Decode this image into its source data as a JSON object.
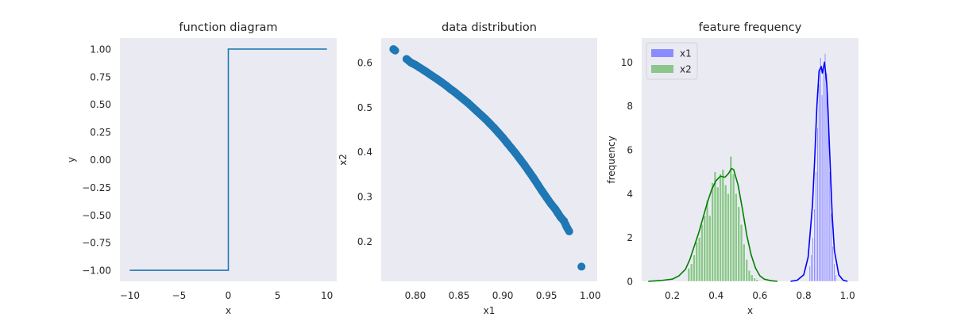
{
  "chart_data": [
    {
      "type": "line",
      "title": "function diagram",
      "xlabel": "x",
      "ylabel": "y",
      "xlim": [
        -11,
        11
      ],
      "ylim": [
        -1.1,
        1.1
      ],
      "xticks": [
        -10,
        -5,
        0,
        5,
        10
      ],
      "xtick_labels": [
        "−10",
        "−5",
        "0",
        "5",
        "10"
      ],
      "yticks": [
        -1.0,
        -0.75,
        -0.5,
        -0.25,
        0.0,
        0.25,
        0.5,
        0.75,
        1.0
      ],
      "ytick_labels": [
        "−1.00",
        "−0.75",
        "−0.50",
        "−0.25",
        "0.00",
        "0.25",
        "0.50",
        "0.75",
        "1.00"
      ],
      "series": [
        {
          "color": "#1f77b4",
          "x": [
            -10,
            0,
            0,
            10
          ],
          "y": [
            -1,
            -1,
            1,
            1
          ]
        }
      ],
      "grid": false
    },
    {
      "type": "scatter",
      "title": "data distribution",
      "xlabel": "x1",
      "ylabel": "x2",
      "xlim": [
        0.761,
        1.008
      ],
      "ylim": [
        0.11,
        0.655
      ],
      "xticks": [
        0.8,
        0.85,
        0.9,
        0.95,
        1.0
      ],
      "xtick_labels": [
        "0.80",
        "0.85",
        "0.90",
        "0.95",
        "1.00"
      ],
      "yticks": [
        0.2,
        0.3,
        0.4,
        0.5,
        0.6
      ],
      "ytick_labels": [
        "0.2",
        "0.3",
        "0.4",
        "0.5",
        "0.6"
      ],
      "color": "#1f77b4",
      "x": [
        0.775,
        0.777,
        0.79,
        0.795,
        0.8,
        0.812,
        0.818,
        0.825,
        0.83,
        0.835,
        0.84,
        0.845,
        0.85,
        0.855,
        0.86,
        0.865,
        0.87,
        0.875,
        0.88,
        0.885,
        0.89,
        0.895,
        0.9,
        0.905,
        0.91,
        0.915,
        0.92,
        0.925,
        0.93,
        0.935,
        0.94,
        0.945,
        0.95,
        0.955,
        0.96,
        0.963,
        0.966,
        0.97,
        0.973,
        0.976,
        0.99
      ],
      "y": [
        0.63,
        0.627,
        0.608,
        0.6,
        0.595,
        0.58,
        0.572,
        0.563,
        0.556,
        0.549,
        0.541,
        0.534,
        0.526,
        0.518,
        0.51,
        0.501,
        0.492,
        0.483,
        0.474,
        0.464,
        0.454,
        0.443,
        0.432,
        0.42,
        0.408,
        0.396,
        0.383,
        0.37,
        0.356,
        0.342,
        0.327,
        0.312,
        0.298,
        0.284,
        0.272,
        0.263,
        0.254,
        0.245,
        0.232,
        0.222,
        0.143
      ],
      "grid": false
    },
    {
      "type": "bar",
      "title": "feature frequency",
      "xlabel": "x",
      "ylabel": "frequency",
      "xlim": [
        0.06,
        1.05
      ],
      "ylim": [
        0,
        11.1
      ],
      "xticks": [
        0.2,
        0.4,
        0.6,
        0.8,
        1.0
      ],
      "xtick_labels": [
        "0.2",
        "0.4",
        "0.6",
        "0.8",
        "1.0"
      ],
      "yticks": [
        0,
        2,
        4,
        6,
        8,
        10
      ],
      "ytick_labels": [
        "0",
        "2",
        "4",
        "6",
        "8",
        "10"
      ],
      "legend": {
        "position": "top-left",
        "entries": [
          "x1",
          "x2"
        ]
      },
      "series": [
        {
          "name": "x1",
          "color": "#0000ff",
          "bar_color": "#8c8cff",
          "bins": [
            {
              "x0": 0.825,
              "x1": 0.832,
              "value": 0.7
            },
            {
              "x0": 0.832,
              "x1": 0.839,
              "value": 1.2
            },
            {
              "x0": 0.839,
              "x1": 0.846,
              "value": 2.0
            },
            {
              "x0": 0.846,
              "x1": 0.853,
              "value": 3.3
            },
            {
              "x0": 0.853,
              "x1": 0.86,
              "value": 5.0
            },
            {
              "x0": 0.86,
              "x1": 0.867,
              "value": 7.0
            },
            {
              "x0": 0.867,
              "x1": 0.874,
              "value": 9.0
            },
            {
              "x0": 0.874,
              "x1": 0.881,
              "value": 10.2
            },
            {
              "x0": 0.881,
              "x1": 0.888,
              "value": 8.5
            },
            {
              "x0": 0.888,
              "x1": 0.895,
              "value": 9.8
            },
            {
              "x0": 0.895,
              "x1": 0.902,
              "value": 10.4
            },
            {
              "x0": 0.902,
              "x1": 0.909,
              "value": 9.5
            },
            {
              "x0": 0.909,
              "x1": 0.916,
              "value": 7.2
            },
            {
              "x0": 0.916,
              "x1": 0.923,
              "value": 5.0
            },
            {
              "x0": 0.923,
              "x1": 0.93,
              "value": 3.1
            },
            {
              "x0": 0.93,
              "x1": 0.937,
              "value": 1.6
            },
            {
              "x0": 0.937,
              "x1": 0.944,
              "value": 0.8
            },
            {
              "x0": 0.944,
              "x1": 0.951,
              "value": 0.3
            }
          ],
          "kde": {
            "x": [
              0.74,
              0.77,
              0.8,
              0.82,
              0.84,
              0.85,
              0.86,
              0.87,
              0.88,
              0.885,
              0.895,
              0.905,
              0.91,
              0.92,
              0.93,
              0.94,
              0.96,
              0.98,
              1.0
            ],
            "y": [
              0,
              0.05,
              0.3,
              1.1,
              3.5,
              5.6,
              8.0,
              9.6,
              9.8,
              9.5,
              10.0,
              9.0,
              8.0,
              5.5,
              3.0,
              1.4,
              0.3,
              0.05,
              0
            ]
          }
        },
        {
          "name": "x2",
          "color": "#008000",
          "bar_color": "#8cc68c",
          "bins": [
            {
              "x0": 0.27,
              "x1": 0.282,
              "value": 0.6
            },
            {
              "x0": 0.282,
              "x1": 0.294,
              "value": 0.8
            },
            {
              "x0": 0.294,
              "x1": 0.306,
              "value": 1.2
            },
            {
              "x0": 0.306,
              "x1": 0.318,
              "value": 1.8
            },
            {
              "x0": 0.318,
              "x1": 0.33,
              "value": 2.0
            },
            {
              "x0": 0.33,
              "x1": 0.342,
              "value": 2.6
            },
            {
              "x0": 0.342,
              "x1": 0.354,
              "value": 3.0
            },
            {
              "x0": 0.354,
              "x1": 0.366,
              "value": 3.7
            },
            {
              "x0": 0.366,
              "x1": 0.378,
              "value": 3.0
            },
            {
              "x0": 0.378,
              "x1": 0.39,
              "value": 4.5
            },
            {
              "x0": 0.39,
              "x1": 0.402,
              "value": 5.0
            },
            {
              "x0": 0.402,
              "x1": 0.414,
              "value": 4.3
            },
            {
              "x0": 0.414,
              "x1": 0.426,
              "value": 4.9
            },
            {
              "x0": 0.426,
              "x1": 0.438,
              "value": 5.1
            },
            {
              "x0": 0.438,
              "x1": 0.45,
              "value": 4.4
            },
            {
              "x0": 0.45,
              "x1": 0.462,
              "value": 4.0
            },
            {
              "x0": 0.462,
              "x1": 0.474,
              "value": 5.7
            },
            {
              "x0": 0.474,
              "x1": 0.486,
              "value": 4.9
            },
            {
              "x0": 0.486,
              "x1": 0.498,
              "value": 4.0
            },
            {
              "x0": 0.498,
              "x1": 0.51,
              "value": 3.4
            },
            {
              "x0": 0.51,
              "x1": 0.522,
              "value": 2.6
            },
            {
              "x0": 0.522,
              "x1": 0.534,
              "value": 1.7
            },
            {
              "x0": 0.534,
              "x1": 0.546,
              "value": 1.0
            },
            {
              "x0": 0.546,
              "x1": 0.558,
              "value": 0.5
            },
            {
              "x0": 0.558,
              "x1": 0.57,
              "value": 0.3
            },
            {
              "x0": 0.57,
              "x1": 0.582,
              "value": 0.15
            },
            {
              "x0": 0.582,
              "x1": 0.594,
              "value": 0.08
            }
          ],
          "kde": {
            "x": [
              0.09,
              0.12,
              0.15,
              0.2,
              0.23,
              0.26,
              0.28,
              0.3,
              0.32,
              0.34,
              0.36,
              0.38,
              0.4,
              0.42,
              0.44,
              0.455,
              0.47,
              0.48,
              0.5,
              0.52,
              0.54,
              0.56,
              0.58,
              0.6,
              0.62,
              0.65,
              0.68
            ],
            "y": [
              0.0,
              0.02,
              0.04,
              0.1,
              0.25,
              0.55,
              1.0,
              1.6,
              2.2,
              2.9,
              3.6,
              4.2,
              4.6,
              4.8,
              4.75,
              4.9,
              5.15,
              5.1,
              4.4,
              3.3,
              2.1,
              1.2,
              0.6,
              0.25,
              0.1,
              0.03,
              0.0
            ]
          }
        }
      ],
      "grid": false
    }
  ]
}
